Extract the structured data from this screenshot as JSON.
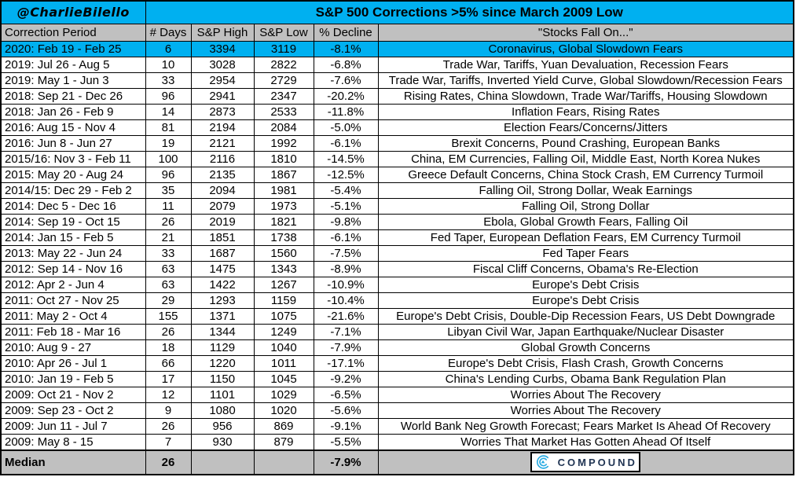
{
  "handle": "@CharlieBilello",
  "title": "S&P 500 Corrections >5% since March 2009 Low",
  "colors": {
    "highlight_cyan": "#00b0f0",
    "header_gray": "#c0c0c0",
    "logo_blue": "#29abe2",
    "logo_navy": "#1f3352"
  },
  "chart_data": {
    "type": "table",
    "title": "S&P 500 Corrections >5% since March 2009 Low",
    "columns": [
      "Correction Period",
      "# Days",
      "S&P High",
      "S&P Low",
      "% Decline",
      "\"Stocks Fall On...\""
    ],
    "column_keys": [
      "correction-period",
      "num-days",
      "sp-high",
      "sp-low",
      "pct-decline",
      "stocks-fall-on"
    ],
    "highlighted_row_index": 0,
    "rows": [
      [
        "2020: Feb 19 - Feb 25",
        "6",
        "3394",
        "3119",
        "-8.1%",
        "Coronavirus, Global Slowdown Fears"
      ],
      [
        "2019: Jul 26 - Aug 5",
        "10",
        "3028",
        "2822",
        "-6.8%",
        "Trade War, Tariffs, Yuan Devaluation, Recession Fears"
      ],
      [
        "2019: May 1 - Jun 3",
        "33",
        "2954",
        "2729",
        "-7.6%",
        "Trade War, Tariffs, Inverted Yield Curve, Global Slowdown/Recession Fears"
      ],
      [
        "2018: Sep 21 - Dec 26",
        "96",
        "2941",
        "2347",
        "-20.2%",
        "Rising Rates, China Slowdown, Trade War/Tariffs, Housing Slowdown"
      ],
      [
        "2018: Jan 26 - Feb 9",
        "14",
        "2873",
        "2533",
        "-11.8%",
        "Inflation Fears, Rising Rates"
      ],
      [
        "2016: Aug 15 - Nov 4",
        "81",
        "2194",
        "2084",
        "-5.0%",
        "Election Fears/Concerns/Jitters"
      ],
      [
        "2016: Jun 8 - Jun 27",
        "19",
        "2121",
        "1992",
        "-6.1%",
        "Brexit Concerns, Pound Crashing, European Banks"
      ],
      [
        "2015/16: Nov 3 - Feb 11",
        "100",
        "2116",
        "1810",
        "-14.5%",
        "China, EM Currencies, Falling Oil, Middle East, North Korea Nukes"
      ],
      [
        "2015: May 20 - Aug 24",
        "96",
        "2135",
        "1867",
        "-12.5%",
        "Greece Default Concerns, China Stock Crash, EM Currency Turmoil"
      ],
      [
        "2014/15: Dec 29 - Feb 2",
        "35",
        "2094",
        "1981",
        "-5.4%",
        "Falling Oil, Strong Dollar, Weak Earnings"
      ],
      [
        "2014: Dec 5 - Dec 16",
        "11",
        "2079",
        "1973",
        "-5.1%",
        "Falling Oil, Strong Dollar"
      ],
      [
        "2014: Sep 19 - Oct 15",
        "26",
        "2019",
        "1821",
        "-9.8%",
        "Ebola, Global Growth Fears, Falling Oil"
      ],
      [
        "2014: Jan 15 - Feb 5",
        "21",
        "1851",
        "1738",
        "-6.1%",
        "Fed Taper, European Deflation Fears, EM Currency Turmoil"
      ],
      [
        "2013: May 22 - Jun 24",
        "33",
        "1687",
        "1560",
        "-7.5%",
        "Fed Taper Fears"
      ],
      [
        "2012: Sep 14 - Nov 16",
        "63",
        "1475",
        "1343",
        "-8.9%",
        "Fiscal Cliff Concerns, Obama's Re-Election"
      ],
      [
        "2012: Apr 2 - Jun 4",
        "63",
        "1422",
        "1267",
        "-10.9%",
        "Europe's Debt Crisis"
      ],
      [
        "2011: Oct 27 - Nov 25",
        "29",
        "1293",
        "1159",
        "-10.4%",
        "Europe's Debt Crisis"
      ],
      [
        "2011: May 2 - Oct 4",
        "155",
        "1371",
        "1075",
        "-21.6%",
        "Europe's Debt Crisis, Double-Dip Recession Fears, US Debt Downgrade"
      ],
      [
        "2011: Feb 18 - Mar 16",
        "26",
        "1344",
        "1249",
        "-7.1%",
        "Libyan Civil War, Japan Earthquake/Nuclear Disaster"
      ],
      [
        "2010: Aug 9 - 27",
        "18",
        "1129",
        "1040",
        "-7.9%",
        "Global Growth Concerns"
      ],
      [
        "2010: Apr 26 - Jul 1",
        "66",
        "1220",
        "1011",
        "-17.1%",
        "Europe's Debt Crisis, Flash Crash, Growth Concerns"
      ],
      [
        "2010: Jan 19 - Feb 5",
        "17",
        "1150",
        "1045",
        "-9.2%",
        "China's Lending Curbs, Obama Bank Regulation Plan"
      ],
      [
        "2009: Oct 21 - Nov 2",
        "12",
        "1101",
        "1029",
        "-6.5%",
        "Worries About The Recovery"
      ],
      [
        "2009: Sep 23 - Oct 2",
        "9",
        "1080",
        "1020",
        "-5.6%",
        "Worries About The Recovery"
      ],
      [
        "2009: Jun 11 - Jul 7",
        "26",
        "956",
        "869",
        "-9.1%",
        "World Bank Neg Growth Forecast; Fears Market Is Ahead Of Recovery"
      ],
      [
        "2009: May 8 - 15",
        "7",
        "930",
        "879",
        "-5.5%",
        "Worries That Market Has Gotten Ahead Of Itself"
      ]
    ],
    "median": {
      "label": "Median",
      "days": "26",
      "high": "",
      "low": "",
      "decline": "-7.9%"
    }
  },
  "logo": {
    "text": "COMPOUND"
  }
}
